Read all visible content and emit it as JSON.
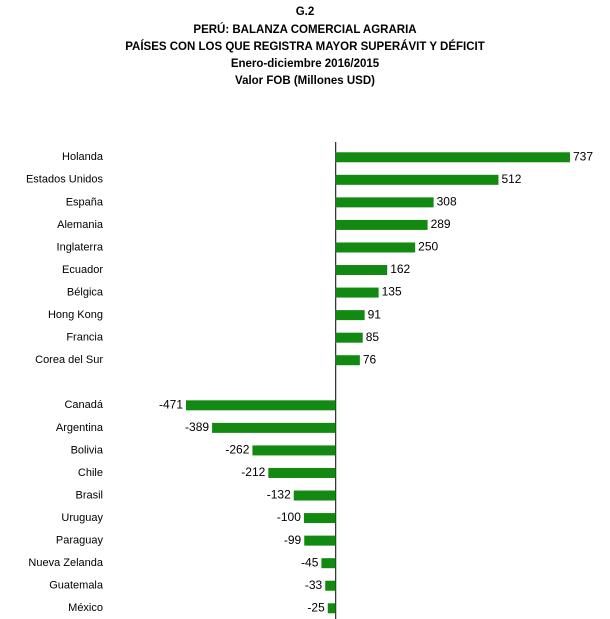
{
  "chart_data": {
    "type": "hbar",
    "title": "G.2",
    "subtitle": [
      "PERÚ: BALANZA COMERCIAL AGRARIA",
      "PAÍSES CON LOS QUE REGISTRA MAYOR SUPERÁVIT Y DÉFICIT",
      "Enero-diciembre 2016/2015",
      "Valor FOB (Millones USD)"
    ],
    "categories": [
      "Holanda",
      "Estados Unidos",
      "España",
      "Alemania",
      "Inglaterra",
      "Ecuador",
      "Bélgica",
      "Hong Kong",
      "Francia",
      "Corea del Sur",
      null,
      "Canadá",
      "Argentina",
      "Bolivia",
      "Chile",
      "Brasil",
      "Uruguay",
      "Paraguay",
      "Nueva Zelanda",
      "Guatemala",
      "México"
    ],
    "values": [
      737,
      512,
      308,
      289,
      250,
      162,
      135,
      91,
      85,
      76,
      null,
      -471,
      -389,
      -262,
      -212,
      -132,
      -100,
      -99,
      -45,
      -33,
      -25
    ],
    "color": "#128a12",
    "xlim": [
      -600,
      800
    ]
  }
}
